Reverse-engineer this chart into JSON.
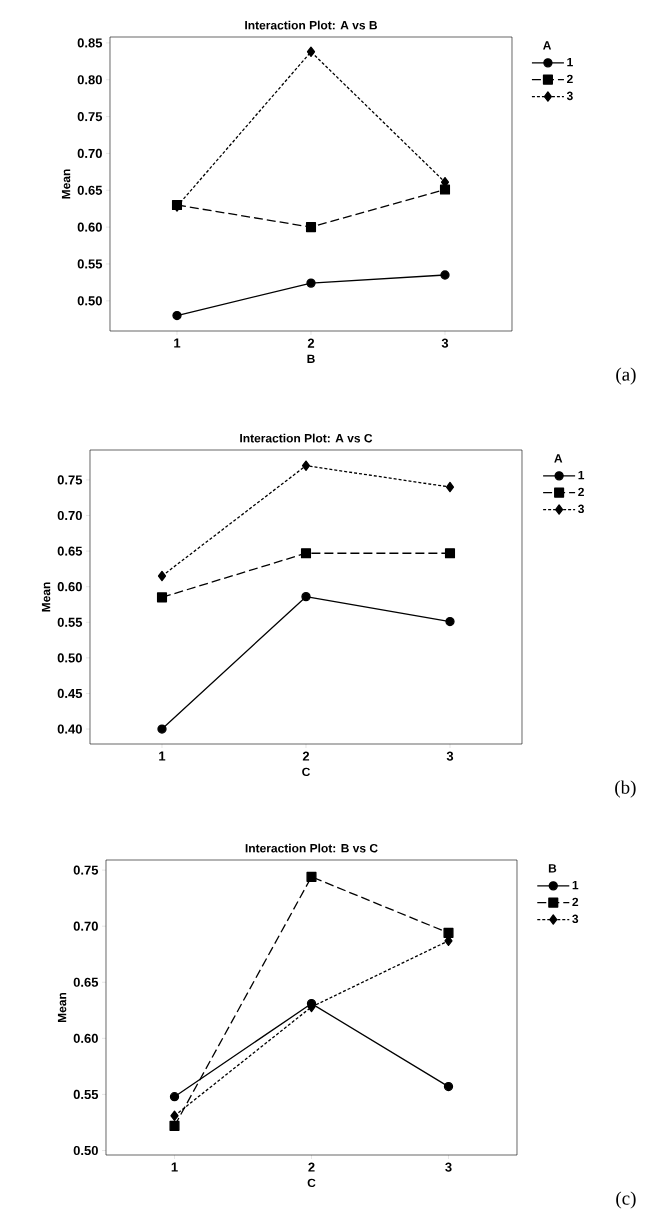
{
  "chart_data": [
    {
      "type": "line",
      "title": "Interaction Plot: A vs B",
      "xlabel": "B",
      "ylabel": "Mean",
      "legend_title": "A",
      "legend": "top right",
      "categories": [
        "1",
        "2",
        "3"
      ],
      "ylim": [
        0.459,
        0.858
      ],
      "yticks": [
        {
          "value": 0.5,
          "label": "0.50"
        },
        {
          "value": 0.55,
          "label": "0.55"
        },
        {
          "value": 0.6,
          "label": "0.60"
        },
        {
          "value": 0.65,
          "label": "0.65"
        },
        {
          "value": 0.7,
          "label": "0.70"
        },
        {
          "value": 0.75,
          "label": "0.75"
        },
        {
          "value": 0.8,
          "label": "0.80"
        },
        {
          "value": 0.85,
          "label": "0.85"
        }
      ],
      "series": [
        {
          "name": "1",
          "color": "#000000",
          "marker": "circle",
          "line_style": "solid",
          "values": [
            0.48,
            0.524,
            0.535
          ]
        },
        {
          "name": "2",
          "color": "#000000",
          "marker": "square",
          "line_style": "dashed",
          "values": [
            0.63,
            0.6,
            0.651
          ]
        },
        {
          "name": "3",
          "color": "#000000",
          "marker": "diamond",
          "line_style": "dotted",
          "values": [
            0.628,
            0.838,
            0.661
          ]
        }
      ],
      "annotations": [
        "(a)"
      ]
    },
    {
      "type": "line",
      "title": "Interaction Plot: A vs C",
      "xlabel": "C",
      "ylabel": "Mean",
      "legend_title": "A",
      "legend": "top right",
      "categories": [
        "1",
        "2",
        "3"
      ],
      "ylim": [
        0.379,
        0.792
      ],
      "yticks": [
        {
          "value": 0.4,
          "label": "0.40"
        },
        {
          "value": 0.45,
          "label": "0.45"
        },
        {
          "value": 0.5,
          "label": "0.50"
        },
        {
          "value": 0.55,
          "label": "0.55"
        },
        {
          "value": 0.6,
          "label": "0.60"
        },
        {
          "value": 0.65,
          "label": "0.65"
        },
        {
          "value": 0.7,
          "label": "0.70"
        },
        {
          "value": 0.75,
          "label": "0.75"
        }
      ],
      "series": [
        {
          "name": "1",
          "color": "#000000",
          "marker": "circle",
          "line_style": "solid",
          "values": [
            0.4,
            0.586,
            0.551
          ]
        },
        {
          "name": "2",
          "color": "#000000",
          "marker": "square",
          "line_style": "dashed",
          "values": [
            0.585,
            0.647,
            0.647
          ]
        },
        {
          "name": "3",
          "color": "#000000",
          "marker": "diamond",
          "line_style": "dotted",
          "values": [
            0.615,
            0.77,
            0.74
          ]
        }
      ],
      "annotations": [
        "(b)"
      ]
    },
    {
      "type": "line",
      "title": "Interaction Plot: B vs C",
      "xlabel": "C",
      "ylabel": "Mean",
      "legend_title": "B",
      "legend": "top right",
      "categories": [
        "1",
        "2",
        "3"
      ],
      "ylim": [
        0.496,
        0.759
      ],
      "yticks": [
        {
          "value": 0.5,
          "label": "0.50"
        },
        {
          "value": 0.55,
          "label": "0.55"
        },
        {
          "value": 0.6,
          "label": "0.60"
        },
        {
          "value": 0.65,
          "label": "0.65"
        },
        {
          "value": 0.7,
          "label": "0.70"
        },
        {
          "value": 0.75,
          "label": "0.75"
        }
      ],
      "series": [
        {
          "name": "1",
          "color": "#000000",
          "marker": "circle",
          "line_style": "solid",
          "values": [
            0.548,
            0.631,
            0.557
          ]
        },
        {
          "name": "2",
          "color": "#000000",
          "marker": "square",
          "line_style": "dashed",
          "values": [
            0.522,
            0.744,
            0.694
          ]
        },
        {
          "name": "3",
          "color": "#000000",
          "marker": "diamond",
          "line_style": "dotted",
          "values": [
            0.531,
            0.628,
            0.687
          ]
        }
      ],
      "annotations": [
        "(c)"
      ]
    }
  ]
}
